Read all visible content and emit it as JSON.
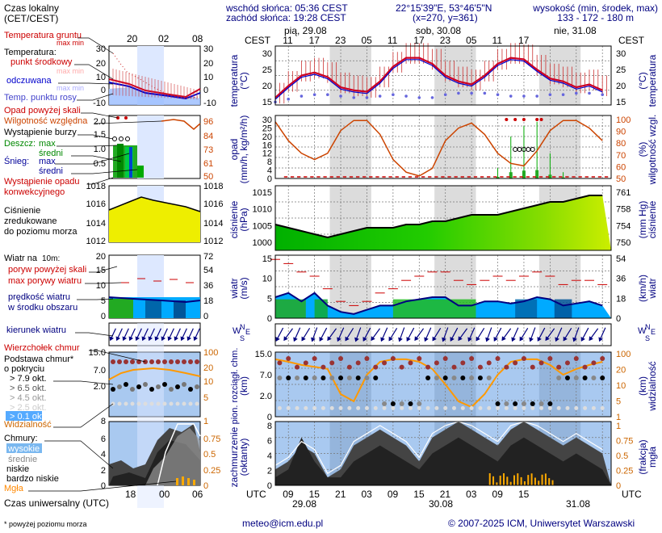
{
  "header": {
    "sunrise": "wschód słońca: 05:36 CEST",
    "sunset": "zachód słońca: 19:28 CEST",
    "coords": "22°15'39\"E, 53°46'5\"N",
    "grid": "(x=270, y=361)",
    "height_title": "wysokość (min, środek, max)",
    "heights": "133 - 172 - 180 m"
  },
  "legend": {
    "time_local": "Czas lokalny",
    "time_local2": "(CET/CEST)",
    "legend_ticks": [
      "20",
      "02",
      "08"
    ],
    "legend_utc_ticks": [
      "18",
      "00",
      "06"
    ],
    "temp_ground": "Temperatura gruntu",
    "max_min": "max min",
    "temperature": "Temperatura:",
    "mid_point": "punkt środkowy",
    "max_min2": "max min",
    "feels": "odczuwana",
    "max_min3": "max min",
    "dew": "Temp. punktu rosy",
    "temp_axis_l": [
      "30",
      "20",
      "10",
      "0",
      "-10"
    ],
    "temp_axis_r": [
      "30",
      "20",
      "10",
      "0",
      "-10"
    ],
    "precip_above": "Opad powyżej skali",
    "humidity": "Wilgotność względna",
    "storm": "Wystąpienie burzy",
    "rain": "Deszcz:",
    "rain_max": "max",
    "rain_mid": "średni",
    "snow": "Śnieg:",
    "snow_max": "max",
    "snow_mid": "średni",
    "convective": "Wystąpienie opadu",
    "convective2": "konwekcyjnego",
    "precip_axis_l": [
      "2.0",
      "1.5",
      "1.0",
      "0.5"
    ],
    "precip_axis_r": [
      "96",
      "84",
      "73",
      "61",
      "50"
    ],
    "pressure": "Ciśnienie",
    "pressure2": "zredukowane",
    "pressure3": "do poziomu morza",
    "press_axis_l": [
      "1018",
      "1016",
      "1014",
      "1012"
    ],
    "press_axis_r": [
      "1018",
      "1016",
      "1014",
      "1012"
    ],
    "wind_at": "Wiatr na",
    "wind_10m": "10m:",
    "gust_above": "poryw powyżej skali",
    "gust_max": "max porywy wiatru",
    "wind_speed": "prędkość wiatru",
    "wind_area": "w środku obszaru",
    "wind_axis_l": [
      "20",
      "15",
      "10",
      "5",
      "0"
    ],
    "wind_axis_r": [
      "72",
      "54",
      "36",
      "18",
      "0"
    ],
    "wind_dir": "kierunek wiatru",
    "cloud_top": "Wierzchołek chmur",
    "cloud_base": "Podstawa chmur*",
    "cloud_base2": "o pokryciu",
    "cb_levels": [
      "> 7.9 okt.",
      "> 6.5 okt.",
      "> 4.5 okt.",
      "> 2.5 okt.",
      "> 0.1 okt."
    ],
    "visibility": "Widzialność",
    "cb_axis_l": [
      "15.0",
      "7.0",
      "2.0",
      "0"
    ],
    "cb_axis_r": [
      "100",
      "20",
      "10",
      "5",
      "1"
    ],
    "cloud_axis_r": [
      "0.75",
      "0.5",
      "0.25",
      "0"
    ],
    "cb_8": "8",
    "clouds": "Chmury:",
    "c_high": "wysokie",
    "c_mid": "średnie",
    "c_low": "niskie",
    "c_vlow": "bardzo niskie",
    "fog": "Mgła",
    "cloud_axis_l": [
      "6",
      "4",
      "2",
      "0"
    ],
    "time_utc": "Czas uniwersalny (UTC)",
    "footnote": "* powyżej poziomu morza"
  },
  "top_axis": {
    "days": [
      "pią, 29.08",
      "sob, 30.08",
      "nie, 31.08"
    ],
    "cest": "CEST",
    "hours": [
      "11",
      "17",
      "23",
      "05",
      "11",
      "17",
      "23",
      "05",
      "11",
      "17"
    ]
  },
  "bottom_axis": {
    "utc": "UTC",
    "hours": [
      "09",
      "15",
      "21",
      "03",
      "09",
      "15",
      "21",
      "03",
      "09",
      "15"
    ],
    "dates": [
      "29.08",
      "30.08",
      "31.08"
    ]
  },
  "panel_labels": {
    "temp_l": "temperatura",
    "temp_l2": "(°C)",
    "temp_r": "(°C)",
    "temp_r2": "temperatura",
    "precip_l": "opad",
    "precip_l2": "(mm/h, kg/m²/h)",
    "precip_r": "(%)",
    "precip_r2": "wilgotność wzgl.",
    "press_l": "ciśnienie",
    "press_l2": "(hPa)",
    "press_r": "(mm Hg)",
    "press_r2": "ciśnienie",
    "wind_l": "wiatr",
    "wind_l2": "(m/s)",
    "wind_r": "(km/h)",
    "wind_r2": "wiatr",
    "cb_l": "pion. rozciągł. chm.",
    "cb_l2": "(km)",
    "cb_r": "(km)",
    "cb_r2": "widzialność",
    "cloud_l": "zachmurzenie",
    "cloud_l2": "(oktanty)",
    "cloud_r": "(frakcja)",
    "cloud_r2": "mgła",
    "compass_w": "W",
    "compass_n": "N",
    "compass_s": "S",
    "compass_e": "E"
  },
  "axes": {
    "temp_l": [
      "30",
      "25",
      "20",
      "15"
    ],
    "temp_r": [
      "30",
      "25",
      "20",
      "15"
    ],
    "precip_l": [
      "30",
      "25",
      "20",
      "16",
      "12",
      "8",
      "4",
      "0"
    ],
    "precip_r": [
      "100",
      "90",
      "80",
      "70",
      "60",
      "50"
    ],
    "press_l": [
      "1015",
      "1010",
      "1005",
      "1000"
    ],
    "press_r": [
      "761",
      "758",
      "754",
      "750"
    ],
    "wind_l": [
      "15",
      "10",
      "5",
      "0"
    ],
    "wind_r": [
      "54",
      "36",
      "18",
      "0"
    ],
    "cb_l": [
      "15.0",
      "7.0",
      "2.0",
      "0"
    ],
    "cb_r": [
      "100",
      "20",
      "10",
      "5",
      "1"
    ],
    "cloud_l": [
      "8",
      "6",
      "4",
      "2",
      "0"
    ],
    "cloud_r": [
      "1",
      "0.75",
      "0.5",
      "0.25",
      "0"
    ]
  },
  "footer": {
    "email": "meteo@icm.edu.pl",
    "copyright": "© 2007-2025 ICM, Uniwersytet Warszawski"
  },
  "colors": {
    "temp_mid": "#cc0022",
    "feels": "#0000cc",
    "dew": "#6666dd",
    "humidity": "#cc4400",
    "pressure_fill": "#22aa00",
    "wind_fill": "#00aaff",
    "night": "#d8d8d8",
    "label_blue": "#000080",
    "label_red": "#cc0000",
    "label_orange": "#cc6600"
  },
  "chart_data": {
    "type": "line",
    "x_hours_utc": [
      6,
      9,
      12,
      15,
      18,
      21,
      24,
      27,
      30,
      33,
      36,
      39,
      42,
      45,
      48,
      51,
      54,
      57,
      60,
      63,
      66,
      69,
      72,
      75,
      78,
      81
    ],
    "temperature": [
      14.5,
      18.5,
      22,
      23,
      21.5,
      18,
      17,
      16.5,
      20,
      25,
      28,
      28,
      26,
      22,
      20,
      19,
      22,
      26,
      28,
      27.5,
      24,
      21,
      20,
      18,
      19,
      17
    ],
    "dew_point": [
      13,
      14,
      15,
      15.5,
      15.5,
      15,
      14.5,
      14.5,
      15,
      15.5,
      15,
      14.5,
      14.5,
      15.5,
      16,
      16,
      16,
      15.5,
      15,
      15,
      15,
      15.5,
      15.5,
      16,
      16,
      15.5
    ],
    "humidity": [
      95,
      80,
      70,
      65,
      70,
      88,
      96,
      96,
      85,
      65,
      55,
      52,
      58,
      80,
      90,
      94,
      85,
      70,
      62,
      60,
      72,
      88,
      96,
      96,
      90,
      80
    ],
    "pressure": [
      1005,
      1004,
      1003,
      1002,
      1001,
      1002,
      1003,
      1004,
      1004,
      1004,
      1005,
      1005,
      1006,
      1006,
      1007,
      1008,
      1008,
      1008,
      1009,
      1010,
      1011,
      1012,
      1012,
      1013,
      1014,
      1014
    ],
    "wind": [
      5,
      6,
      4,
      6,
      3,
      1.5,
      1,
      2,
      3,
      3,
      4,
      4.5,
      5,
      5,
      3,
      3,
      4,
      4,
      3.5,
      4,
      5,
      4.5,
      3,
      3.5,
      4,
      3
    ],
    "gusts": [
      14,
      13,
      11,
      10,
      7,
      4,
      3,
      4,
      6,
      7,
      9,
      10,
      11,
      11,
      9,
      8,
      9,
      10,
      9,
      10,
      11,
      10,
      8,
      9,
      9,
      8
    ],
    "precip_max": [
      0,
      0,
      0,
      0,
      0,
      0,
      0,
      0,
      0,
      0,
      0,
      0,
      0,
      0,
      0,
      0,
      0,
      5,
      20,
      25,
      27,
      12,
      3,
      0,
      0,
      0
    ],
    "visibility_km": [
      60,
      50,
      40,
      35,
      30,
      5,
      3,
      20,
      50,
      60,
      60,
      50,
      30,
      10,
      3,
      2,
      5,
      20,
      50,
      60,
      60,
      40,
      20,
      30,
      40,
      50
    ]
  }
}
